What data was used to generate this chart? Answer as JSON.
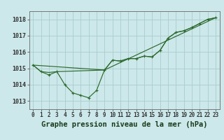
{
  "title": "Graphe pression niveau de la mer (hPa)",
  "background_color": "#cce8ea",
  "grid_color": "#aacccc",
  "line_color": "#2d6a2d",
  "xlim": [
    -0.5,
    23.5
  ],
  "ylim": [
    1012.5,
    1018.5
  ],
  "yticks": [
    1013,
    1014,
    1015,
    1016,
    1017,
    1018
  ],
  "xtick_labels": [
    "0",
    "1",
    "2",
    "3",
    "4",
    "5",
    "6",
    "7",
    "8",
    "9",
    "10",
    "11",
    "12",
    "13",
    "14",
    "15",
    "16",
    "17",
    "18",
    "19",
    "20",
    "21",
    "22",
    "23"
  ],
  "series1_x": [
    0,
    1,
    2,
    3,
    4,
    5,
    6,
    7,
    8,
    9,
    10,
    11,
    12,
    13,
    14,
    15,
    16,
    17,
    18,
    19,
    20,
    21,
    22,
    23
  ],
  "series1_y": [
    1015.2,
    1014.8,
    1014.6,
    1014.8,
    1014.0,
    1013.5,
    1013.35,
    1013.2,
    1013.65,
    1014.9,
    1015.5,
    1015.45,
    1015.6,
    1015.6,
    1015.75,
    1015.7,
    1016.1,
    1016.85,
    1017.2,
    1017.3,
    1017.5,
    1017.75,
    1018.0,
    1018.1
  ],
  "series2_x": [
    0,
    1,
    2,
    3,
    9,
    10,
    11,
    12,
    13,
    14,
    15,
    16,
    17,
    18,
    19,
    20,
    21,
    22,
    23
  ],
  "series2_y": [
    1015.2,
    1014.8,
    1014.75,
    1014.8,
    1014.9,
    1015.5,
    1015.45,
    1015.6,
    1015.6,
    1015.75,
    1015.7,
    1016.1,
    1016.85,
    1017.2,
    1017.3,
    1017.5,
    1017.75,
    1018.0,
    1018.1
  ],
  "series3_x": [
    0,
    9,
    23
  ],
  "series3_y": [
    1015.2,
    1014.9,
    1018.1
  ],
  "title_fontsize": 7.5,
  "tick_fontsize": 5.5
}
